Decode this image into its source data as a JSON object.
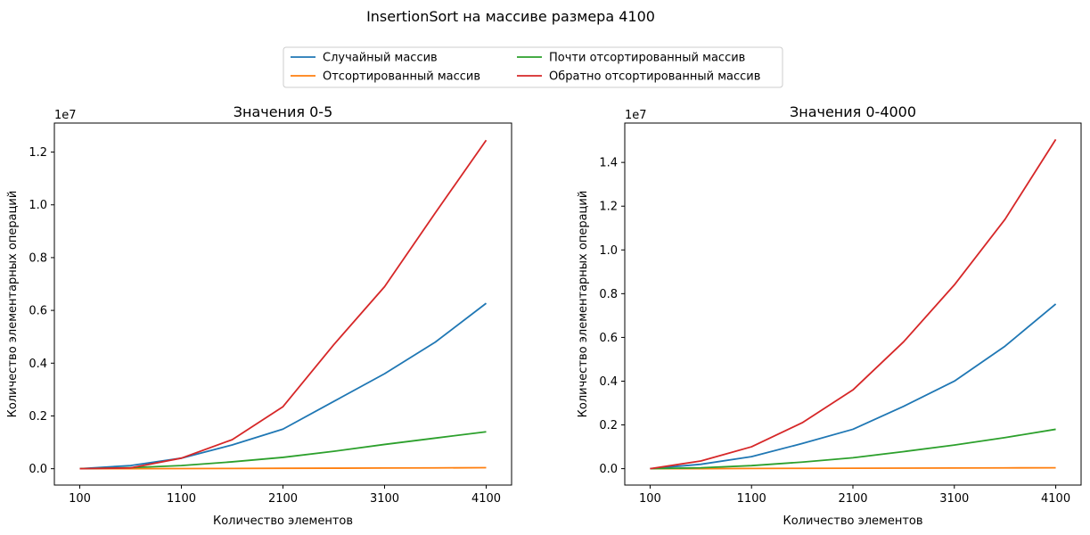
{
  "figure": {
    "suptitle": "InsertionSort на массиве размера 4100"
  },
  "colors": {
    "Случайный массив": "#1f77b4",
    "Отсортированный массив": "#ff7f0e",
    "Почти отсортированный массив": "#2ca02c",
    "Обратно отсортированный массив": "#d62728"
  },
  "legend": {
    "placement": "top-center",
    "columns": 2,
    "entries": [
      "Случайный массив",
      "Отсортированный массив",
      "Почти отсортированный массив",
      "Обратно отсортированный массив"
    ]
  },
  "chart_data": [
    {
      "type": "line",
      "title": "Значения 0-5",
      "xlabel": "Количество элементов",
      "ylabel": "Количество элементарных операций",
      "offset_label": "1e7",
      "xlim": [
        -150,
        4350
      ],
      "ylim": [
        -0.062,
        1.31
      ],
      "xticks": [
        100,
        1100,
        2100,
        3100,
        4100
      ],
      "yticks": [
        0.0,
        0.2,
        0.4,
        0.6,
        0.8,
        1.0,
        1.2
      ],
      "ytick_labels": [
        "0.0",
        "0.2",
        "0.4",
        "0.6",
        "0.8",
        "1.0",
        "1.2"
      ],
      "grid": false,
      "x": [
        100,
        600,
        1100,
        1600,
        2100,
        2600,
        3100,
        3600,
        4100
      ],
      "series": [
        {
          "name": "Случайный массив",
          "values": [
            0.0,
            0.012,
            0.04,
            0.09,
            0.15,
            0.255,
            0.36,
            0.48,
            0.627
          ]
        },
        {
          "name": "Отсортированный массив",
          "values": [
            0.0,
            0.0,
            0.0005,
            0.001,
            0.0015,
            0.002,
            0.0025,
            0.003,
            0.004
          ]
        },
        {
          "name": "Почти отсортированный массив",
          "values": [
            0.0,
            0.004,
            0.012,
            0.026,
            0.043,
            0.066,
            0.092,
            0.116,
            0.14
          ]
        },
        {
          "name": "Обратно отсортированный массив",
          "values": [
            0.0,
            0.003,
            0.04,
            0.11,
            0.235,
            0.47,
            0.69,
            0.97,
            1.245
          ]
        }
      ]
    },
    {
      "type": "line",
      "title": "Значения 0-4000",
      "xlabel": "Количество элементов",
      "ylabel": "Количество элементарных операций",
      "offset_label": "1e7",
      "xlim": [
        -150,
        4350
      ],
      "ylim": [
        -0.075,
        1.58
      ],
      "xticks": [
        100,
        1100,
        2100,
        3100,
        4100
      ],
      "yticks": [
        0.0,
        0.2,
        0.4,
        0.6,
        0.8,
        1.0,
        1.2,
        1.4
      ],
      "ytick_labels": [
        "0.0",
        "0.2",
        "0.4",
        "0.6",
        "0.8",
        "1.0",
        "1.2",
        "1.4"
      ],
      "grid": false,
      "x": [
        100,
        600,
        1100,
        1600,
        2100,
        2600,
        3100,
        3600,
        4100
      ],
      "series": [
        {
          "name": "Случайный массив",
          "values": [
            0.0,
            0.02,
            0.055,
            0.115,
            0.18,
            0.285,
            0.4,
            0.56,
            0.753
          ]
        },
        {
          "name": "Отсортированный массив",
          "values": [
            0.0,
            0.0,
            0.001,
            0.0015,
            0.002,
            0.0025,
            0.003,
            0.0035,
            0.004
          ]
        },
        {
          "name": "Почти отсортированный массив",
          "values": [
            0.0,
            0.004,
            0.014,
            0.03,
            0.05,
            0.078,
            0.108,
            0.142,
            0.18
          ]
        },
        {
          "name": "Обратно отсортированный массив",
          "values": [
            0.0,
            0.035,
            0.1,
            0.21,
            0.36,
            0.58,
            0.84,
            1.14,
            1.505
          ]
        }
      ]
    }
  ]
}
